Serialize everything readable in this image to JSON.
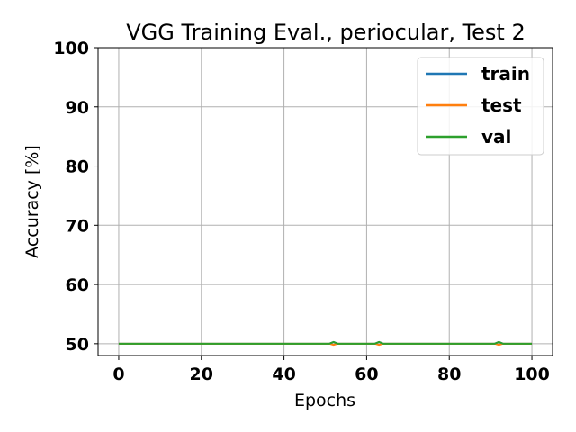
{
  "chart_data": {
    "type": "line",
    "title": "VGG Training Eval., periocular, Test 2",
    "xlabel": "Epochs",
    "ylabel": "Accuracy [%]",
    "xlim": [
      -5,
      105
    ],
    "ylim": [
      48,
      100
    ],
    "xticks": [
      0,
      20,
      40,
      60,
      80,
      100
    ],
    "yticks": [
      50,
      60,
      70,
      80,
      90,
      100
    ],
    "grid": true,
    "legend_position": "top-right",
    "series": [
      {
        "name": "train",
        "color": "#1f77b4",
        "points": [
          [
            0,
            50
          ],
          [
            51,
            50
          ],
          [
            52,
            50.3
          ],
          [
            53,
            50
          ],
          [
            62,
            50
          ],
          [
            63,
            50.3
          ],
          [
            64,
            50
          ],
          [
            91,
            50
          ],
          [
            92,
            50.3
          ],
          [
            93,
            50
          ],
          [
            100,
            50
          ]
        ]
      },
      {
        "name": "test",
        "color": "#ff7f0e",
        "points": [
          [
            0,
            50
          ],
          [
            51,
            50
          ],
          [
            52,
            49.8
          ],
          [
            53,
            50
          ],
          [
            62,
            50
          ],
          [
            63,
            49.8
          ],
          [
            64,
            50
          ],
          [
            91,
            50
          ],
          [
            92,
            49.8
          ],
          [
            93,
            50
          ],
          [
            100,
            50
          ]
        ]
      },
      {
        "name": "val",
        "color": "#2ca02c",
        "points": [
          [
            0,
            50
          ],
          [
            51,
            50
          ],
          [
            52,
            50.3
          ],
          [
            53,
            50
          ],
          [
            62,
            50
          ],
          [
            63,
            50.3
          ],
          [
            64,
            50
          ],
          [
            91,
            50
          ],
          [
            92,
            50.3
          ],
          [
            93,
            50
          ],
          [
            100,
            50
          ]
        ]
      }
    ]
  }
}
